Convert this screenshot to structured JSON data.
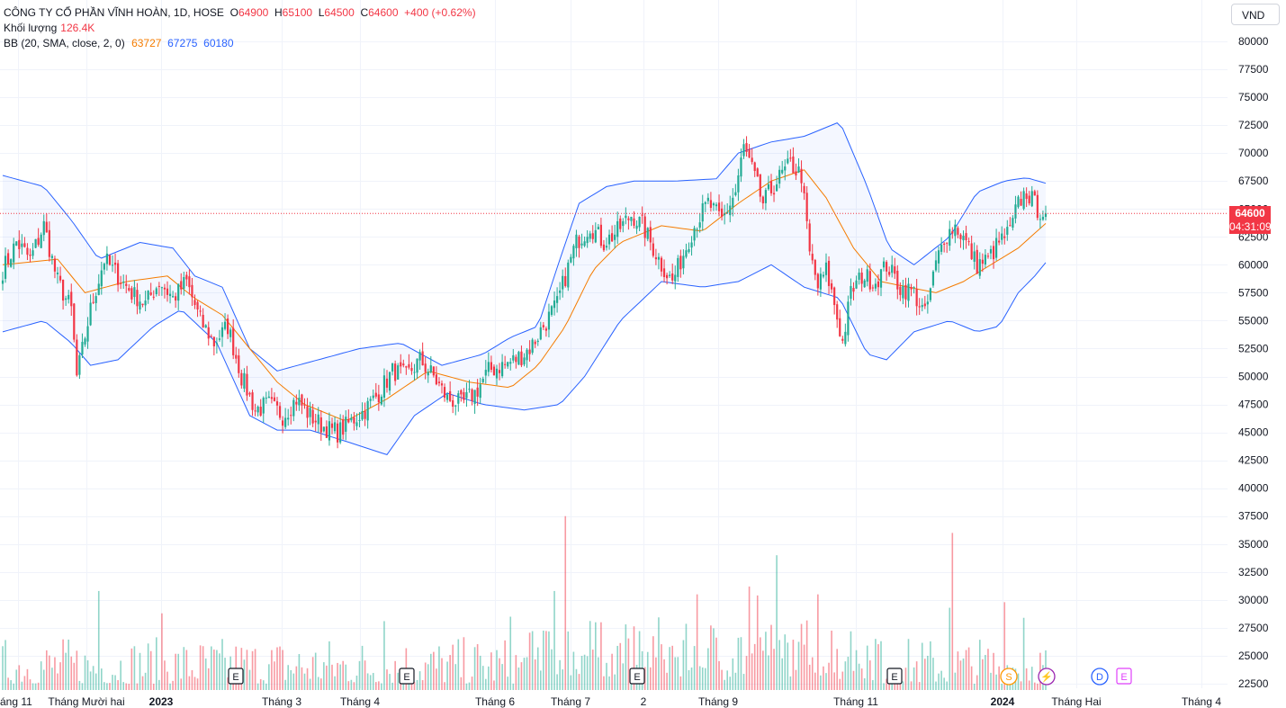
{
  "legend": {
    "symbol": "CÔNG TY CỔ PHẦN VĨNH HOÀN, 1D, HOSE",
    "o_label": "O",
    "o_value": "64900",
    "h_label": "H",
    "h_value": "65100",
    "l_label": "L",
    "l_value": "64500",
    "c_label": "C",
    "c_value": "64600",
    "change": "+400 (+0.62%)",
    "volume_label": "Khối lượng",
    "volume_value": "126.4K",
    "bb_label": "BB (20, SMA, close, 2, 0)",
    "bb_basis": "63727",
    "bb_upper": "67275",
    "bb_lower": "60180"
  },
  "currency": "VND",
  "price_badge": {
    "price": "64600",
    "countdown": "04:31:09"
  },
  "colors": {
    "up": "#22ab94",
    "down": "#f23645",
    "basis": "#f57c00",
    "band": "#2962ff",
    "band_fill": "#2962ff"
  },
  "chart_data": {
    "type": "candlestick",
    "last_close": 64600,
    "y_ticks": [
      80000,
      77500,
      75000,
      72500,
      70000,
      67500,
      65000,
      62500,
      60000,
      57500,
      55000,
      52500,
      50000,
      47500,
      45000,
      42500,
      40000,
      37500,
      35000,
      32500,
      30000,
      27500,
      25000,
      22500
    ],
    "ylim": [
      22000,
      81500
    ],
    "x_labels": [
      "áng 11",
      "Tháng Mười hai",
      "2023",
      "Tháng 3",
      "Tháng 4",
      "Tháng 6",
      "Tháng 7",
      "2",
      "Tháng 9",
      "Tháng 11",
      "2024",
      "Tháng Hai",
      "Tháng 4"
    ],
    "bold_x_labels": [
      "2023",
      "2024"
    ],
    "events": [
      {
        "code": "E",
        "type": "earnings"
      },
      {
        "code": "E",
        "type": "earnings"
      },
      {
        "code": "E",
        "type": "earnings"
      },
      {
        "code": "E",
        "type": "earnings"
      },
      {
        "code": "S",
        "type": "split"
      },
      {
        "code": "⚡",
        "type": "news"
      },
      {
        "code": "D",
        "type": "dividend"
      },
      {
        "code": "E",
        "type": "earnings"
      }
    ],
    "close_anchors": [
      [
        0,
        59500
      ],
      [
        5,
        62000
      ],
      [
        10,
        60500
      ],
      [
        15,
        63500
      ],
      [
        20,
        58500
      ],
      [
        25,
        56000
      ],
      [
        27,
        50000
      ],
      [
        32,
        56000
      ],
      [
        37,
        60500
      ],
      [
        42,
        59000
      ],
      [
        47,
        57500
      ],
      [
        52,
        56500
      ],
      [
        57,
        58500
      ],
      [
        62,
        57000
      ],
      [
        67,
        58500
      ],
      [
        72,
        55000
      ],
      [
        77,
        53000
      ],
      [
        82,
        54500
      ],
      [
        87,
        50000
      ],
      [
        92,
        47000
      ],
      [
        97,
        47500
      ],
      [
        102,
        46500
      ],
      [
        107,
        48000
      ],
      [
        112,
        46500
      ],
      [
        117,
        45500
      ],
      [
        122,
        45000
      ],
      [
        127,
        46000
      ],
      [
        132,
        47000
      ],
      [
        137,
        48500
      ],
      [
        142,
        50500
      ],
      [
        147,
        50000
      ],
      [
        152,
        51500
      ],
      [
        157,
        50000
      ],
      [
        162,
        48000
      ],
      [
        167,
        47500
      ],
      [
        172,
        48500
      ],
      [
        177,
        50500
      ],
      [
        182,
        51000
      ],
      [
        187,
        51500
      ],
      [
        192,
        52500
      ],
      [
        197,
        54500
      ],
      [
        202,
        56500
      ],
      [
        205,
        59000
      ],
      [
        209,
        62000
      ],
      [
        214,
        63500
      ],
      [
        219,
        62000
      ],
      [
        224,
        63000
      ],
      [
        229,
        64500
      ],
      [
        233,
        63500
      ],
      [
        236,
        62000
      ],
      [
        240,
        60000
      ],
      [
        244,
        58500
      ],
      [
        248,
        61000
      ],
      [
        252,
        63500
      ],
      [
        257,
        65500
      ],
      [
        262,
        64000
      ],
      [
        267,
        66500
      ],
      [
        270,
        70500
      ],
      [
        273,
        68500
      ],
      [
        277,
        65500
      ],
      [
        282,
        67500
      ],
      [
        287,
        69000
      ],
      [
        291,
        68000
      ],
      [
        294,
        61000
      ],
      [
        297,
        58000
      ],
      [
        300,
        59500
      ],
      [
        303,
        56500
      ],
      [
        306,
        53000
      ],
      [
        309,
        57500
      ],
      [
        313,
        59000
      ],
      [
        318,
        58500
      ],
      [
        322,
        60000
      ],
      [
        327,
        58000
      ],
      [
        332,
        57500
      ],
      [
        336,
        55500
      ],
      [
        340,
        60000
      ],
      [
        343,
        62500
      ],
      [
        347,
        63500
      ],
      [
        351,
        62000
      ],
      [
        355,
        60000
      ],
      [
        359,
        60500
      ],
      [
        363,
        62000
      ],
      [
        367,
        63000
      ],
      [
        370,
        65500
      ],
      [
        373,
        66500
      ],
      [
        377,
        65000
      ],
      [
        380,
        64600
      ]
    ],
    "bb_basis_anchors": [
      [
        0,
        60000
      ],
      [
        20,
        60500
      ],
      [
        30,
        57500
      ],
      [
        45,
        58500
      ],
      [
        60,
        59000
      ],
      [
        70,
        57000
      ],
      [
        80,
        55500
      ],
      [
        90,
        52500
      ],
      [
        100,
        49500
      ],
      [
        110,
        47500
      ],
      [
        125,
        46000
      ],
      [
        140,
        48000
      ],
      [
        155,
        50500
      ],
      [
        170,
        49500
      ],
      [
        185,
        49000
      ],
      [
        195,
        51000
      ],
      [
        205,
        54500
      ],
      [
        215,
        59500
      ],
      [
        225,
        62000
      ],
      [
        240,
        63500
      ],
      [
        255,
        63000
      ],
      [
        268,
        65500
      ],
      [
        280,
        67500
      ],
      [
        292,
        68500
      ],
      [
        300,
        66000
      ],
      [
        310,
        61500
      ],
      [
        320,
        58500
      ],
      [
        330,
        58000
      ],
      [
        340,
        57500
      ],
      [
        350,
        58500
      ],
      [
        360,
        60000
      ],
      [
        370,
        61500
      ],
      [
        380,
        63700
      ]
    ],
    "bb_upper_anchors": [
      [
        0,
        68000
      ],
      [
        15,
        67000
      ],
      [
        25,
        64000
      ],
      [
        35,
        60500
      ],
      [
        50,
        62000
      ],
      [
        62,
        61500
      ],
      [
        70,
        59000
      ],
      [
        80,
        58000
      ],
      [
        90,
        52500
      ],
      [
        100,
        50500
      ],
      [
        115,
        51500
      ],
      [
        130,
        52500
      ],
      [
        145,
        53000
      ],
      [
        160,
        51000
      ],
      [
        175,
        52000
      ],
      [
        185,
        53500
      ],
      [
        195,
        54500
      ],
      [
        203,
        60500
      ],
      [
        210,
        65500
      ],
      [
        220,
        67000
      ],
      [
        230,
        67500
      ],
      [
        245,
        67500
      ],
      [
        260,
        67700
      ],
      [
        268,
        70000
      ],
      [
        280,
        71000
      ],
      [
        292,
        71500
      ],
      [
        305,
        72800
      ],
      [
        315,
        67000
      ],
      [
        323,
        61500
      ],
      [
        332,
        60000
      ],
      [
        345,
        62500
      ],
      [
        355,
        66500
      ],
      [
        365,
        67500
      ],
      [
        373,
        67800
      ],
      [
        380,
        67300
      ]
    ],
    "bb_lower_anchors": [
      [
        0,
        54000
      ],
      [
        15,
        55000
      ],
      [
        25,
        53000
      ],
      [
        32,
        51000
      ],
      [
        42,
        51500
      ],
      [
        55,
        54500
      ],
      [
        65,
        56000
      ],
      [
        78,
        53000
      ],
      [
        90,
        46500
      ],
      [
        100,
        45200
      ],
      [
        112,
        45200
      ],
      [
        125,
        44200
      ],
      [
        140,
        43000
      ],
      [
        150,
        46500
      ],
      [
        162,
        48500
      ],
      [
        175,
        47500
      ],
      [
        190,
        47000
      ],
      [
        203,
        47500
      ],
      [
        212,
        50000
      ],
      [
        225,
        55000
      ],
      [
        240,
        58500
      ],
      [
        255,
        58000
      ],
      [
        268,
        58500
      ],
      [
        280,
        60000
      ],
      [
        292,
        58000
      ],
      [
        305,
        57000
      ],
      [
        315,
        52000
      ],
      [
        322,
        51500
      ],
      [
        332,
        54000
      ],
      [
        345,
        55000
      ],
      [
        355,
        54000
      ],
      [
        363,
        54500
      ],
      [
        370,
        57500
      ],
      [
        376,
        59000
      ],
      [
        380,
        60200
      ]
    ],
    "volume_peaks": [
      [
        35,
        30800
      ],
      [
        58,
        28800
      ],
      [
        139,
        28100
      ],
      [
        185,
        28500
      ],
      [
        201,
        30800
      ],
      [
        205,
        37500
      ],
      [
        218,
        28000
      ],
      [
        253,
        30500
      ],
      [
        272,
        31200
      ],
      [
        275,
        30400
      ],
      [
        282,
        34000
      ],
      [
        297,
        30500
      ],
      [
        345,
        29300
      ],
      [
        346,
        36000
      ],
      [
        365,
        29800
      ],
      [
        372,
        28400
      ]
    ],
    "bb_params": {
      "length": 20,
      "type": "SMA",
      "source": "close",
      "stddev": 2,
      "offset": 0
    }
  }
}
